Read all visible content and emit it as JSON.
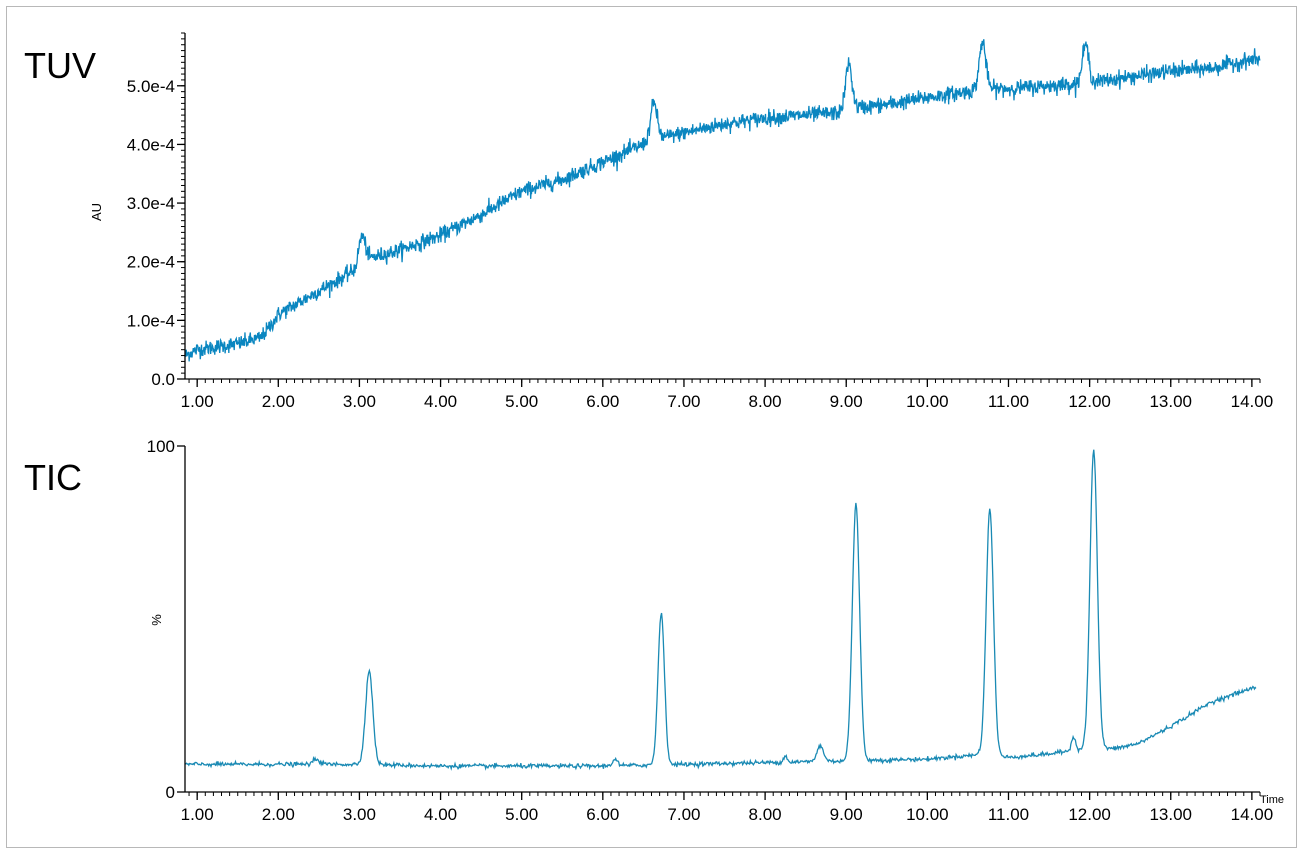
{
  "chart_data": [
    {
      "type": "line",
      "panel_label": "TUV",
      "ylabel": "AU",
      "xlabel": "",
      "color": "#0a86c0",
      "xlim": [
        0.85,
        14.1
      ],
      "ylim": [
        0,
        0.00059
      ],
      "x_ticks": [
        1,
        2,
        3,
        4,
        5,
        6,
        7,
        8,
        9,
        10,
        11,
        12,
        13,
        14
      ],
      "x_tick_labels": [
        "1.00",
        "2.00",
        "3.00",
        "4.00",
        "5.00",
        "6.00",
        "7.00",
        "8.00",
        "9.00",
        "10.00",
        "11.00",
        "12.00",
        "13.00",
        "14.00"
      ],
      "y_ticks": [
        0,
        0.0001,
        0.0002,
        0.0003,
        0.0004,
        0.0005
      ],
      "y_tick_labels": [
        "0.0",
        "1.0e-4",
        "2.0e-4",
        "3.0e-4",
        "4.0e-4",
        "5.0e-4"
      ],
      "baseline": {
        "x": [
          0.85,
          1.0,
          1.5,
          1.78,
          1.9,
          2.0,
          2.5,
          3.0,
          3.1,
          3.5,
          4.0,
          4.5,
          5.0,
          5.5,
          6.0,
          6.5,
          6.6,
          6.75,
          7.0,
          7.5,
          8.0,
          8.5,
          9.0,
          9.1,
          9.5,
          10.0,
          10.5,
          10.7,
          11.0,
          11.5,
          12.0,
          12.5,
          13.0,
          13.5,
          14.0,
          14.1
        ],
        "y": [
          4e-05,
          5e-05,
          6e-05,
          7e-05,
          9e-05,
          0.00011,
          0.00015,
          0.00019,
          0.000205,
          0.00022,
          0.000245,
          0.00028,
          0.00032,
          0.00034,
          0.00037,
          0.0004,
          0.00041,
          0.000412,
          0.00042,
          0.000435,
          0.000445,
          0.00045,
          0.000455,
          0.000462,
          0.000468,
          0.00048,
          0.00049,
          0.000495,
          0.000495,
          0.0005,
          0.000505,
          0.000515,
          0.000525,
          0.00053,
          0.000545,
          0.000545
        ]
      },
      "noise": 6.5e-06,
      "peaks": [
        {
          "x": 3.03,
          "height": 5e-05
        },
        {
          "x": 6.63,
          "height": 6e-05
        },
        {
          "x": 9.03,
          "height": 8e-05
        },
        {
          "x": 10.68,
          "height": 8e-05
        },
        {
          "x": 11.95,
          "height": 6.5e-05
        }
      ],
      "peak_width": 0.04
    },
    {
      "type": "line",
      "panel_label": "TIC",
      "ylabel": "%",
      "xlabel": "Time",
      "color": "#1a8ab4",
      "xlim": [
        0.85,
        14.1
      ],
      "ylim": [
        0,
        100
      ],
      "x_ticks": [
        1,
        2,
        3,
        4,
        5,
        6,
        7,
        8,
        9,
        10,
        11,
        12,
        13,
        14
      ],
      "x_tick_labels": [
        "1.00",
        "2.00",
        "3.00",
        "4.00",
        "5.00",
        "6.00",
        "7.00",
        "8.00",
        "9.00",
        "10.00",
        "11.00",
        "12.00",
        "13.00",
        "14.00"
      ],
      "y_ticks": [
        0,
        100
      ],
      "y_tick_labels": [
        "0",
        "100"
      ],
      "baseline": {
        "x": [
          0.85,
          1.0,
          2.0,
          3.0,
          4.0,
          5.0,
          6.0,
          7.0,
          8.0,
          9.0,
          10.0,
          10.5,
          10.7,
          11.0,
          11.5,
          11.8,
          12.0,
          12.3,
          12.6,
          13.0,
          13.5,
          14.0,
          14.05
        ],
        "y": [
          8,
          8,
          8,
          8,
          7.5,
          7.5,
          7.5,
          8,
          8.5,
          9,
          9.5,
          10.5,
          11,
          10,
          11,
          12,
          13,
          12.5,
          14,
          19,
          26,
          30,
          30
        ]
      },
      "noise": 0.3,
      "peaks": [
        {
          "x": 2.47,
          "height": 1.5,
          "width": 0.04
        },
        {
          "x": 3.12,
          "height": 27,
          "width": 0.045
        },
        {
          "x": 6.15,
          "height": 2,
          "width": 0.03
        },
        {
          "x": 6.72,
          "height": 44,
          "width": 0.04
        },
        {
          "x": 8.25,
          "height": 2,
          "width": 0.02
        },
        {
          "x": 8.68,
          "height": 4.5,
          "width": 0.04
        },
        {
          "x": 9.12,
          "height": 74,
          "width": 0.045
        },
        {
          "x": 10.77,
          "height": 71,
          "width": 0.045
        },
        {
          "x": 11.8,
          "height": 4,
          "width": 0.025
        },
        {
          "x": 12.05,
          "height": 86,
          "width": 0.045
        }
      ]
    }
  ]
}
